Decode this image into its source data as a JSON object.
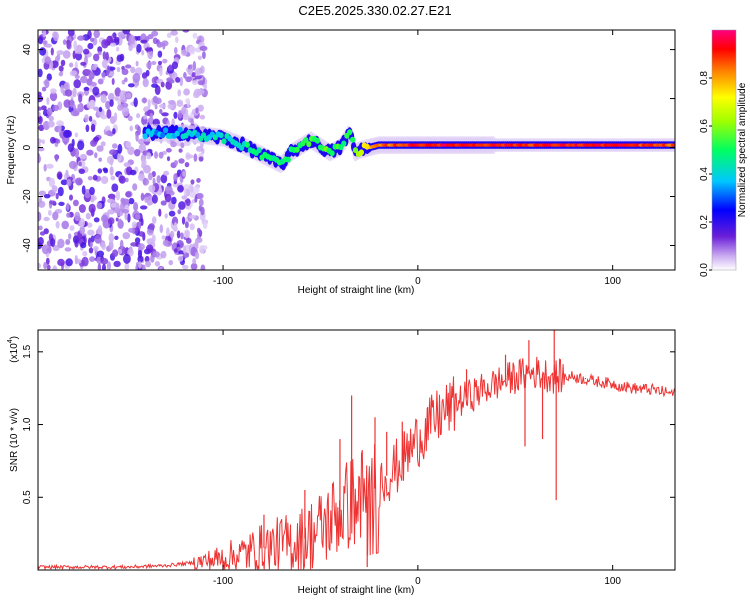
{
  "figure": {
    "title": "C2E5.2025.330.02.27.E21"
  },
  "chart_data": [
    {
      "type": "heatmap",
      "name": "spectrogram",
      "xlabel": "Height of straight line (km)",
      "ylabel": "Frequency (Hz)",
      "xlim": [
        -195,
        132
      ],
      "ylim": [
        -50,
        48
      ],
      "x_ticks": [
        -100,
        0,
        100
      ],
      "x_tick_labels": [
        "-100",
        "0",
        "100"
      ],
      "y_ticks": [
        -40,
        -20,
        0,
        20,
        40
      ],
      "y_tick_labels": [
        "-40",
        "-20",
        "0",
        "20",
        "40"
      ],
      "noise_region_x": [
        -195,
        -115
      ],
      "ridge": {
        "x": [
          -140,
          -120,
          -100,
          -90,
          -80,
          -70,
          -65,
          -55,
          -45,
          -40,
          -35,
          -32,
          -30,
          -25,
          -20,
          -10,
          0,
          20,
          60,
          100,
          132
        ],
        "freq": [
          6,
          6,
          4,
          1,
          -3,
          -7,
          -2,
          3,
          -2,
          0,
          6,
          -2,
          -1,
          0,
          1,
          1,
          1,
          1,
          1,
          1,
          1
        ],
        "amplitude": [
          0.35,
          0.38,
          0.42,
          0.45,
          0.5,
          0.48,
          0.5,
          0.55,
          0.55,
          0.52,
          0.5,
          0.6,
          0.65,
          0.75,
          0.82,
          0.88,
          0.92,
          0.92,
          0.9,
          0.92,
          0.85
        ]
      },
      "colorbar": {
        "label": "Normalized spectral amplitude",
        "range": [
          0,
          1
        ],
        "ticks": [
          0.0,
          0.2,
          0.4,
          0.6,
          0.8
        ],
        "tick_labels": [
          "0.0",
          "0.2",
          "0.4",
          "0.6",
          "0.8"
        ]
      }
    },
    {
      "type": "line",
      "name": "snr",
      "xlabel": "Height of straight line (km)",
      "ylabel": "SNR (10 * v/v)",
      "scale_label": "(x10",
      "scale_exponent": "4",
      "xlim": [
        -195,
        132
      ],
      "ylim": [
        0,
        1.65
      ],
      "x_ticks": [
        -100,
        0,
        100
      ],
      "x_tick_labels": [
        "-100",
        "0",
        "100"
      ],
      "y_ticks": [
        0.5,
        1.0,
        1.5
      ],
      "y_tick_labels": [
        "0.5",
        "1.0",
        "1.5"
      ],
      "series_color": "#ee3333",
      "envelope": {
        "x": [
          -195,
          -150,
          -130,
          -115,
          -100,
          -90,
          -80,
          -70,
          -60,
          -50,
          -40,
          -30,
          -25,
          -20,
          -10,
          0,
          10,
          20,
          30,
          40,
          50,
          60,
          70,
          80,
          90,
          100,
          110,
          120,
          132
        ],
        "y": [
          0.02,
          0.02,
          0.03,
          0.05,
          0.08,
          0.11,
          0.15,
          0.17,
          0.2,
          0.28,
          0.4,
          0.52,
          0.5,
          0.6,
          0.72,
          0.9,
          1.05,
          1.15,
          1.22,
          1.28,
          1.33,
          1.36,
          1.33,
          1.33,
          1.3,
          1.28,
          1.25,
          1.24,
          1.21
        ]
      },
      "spikes": [
        {
          "x": -79,
          "y": 0.38
        },
        {
          "x": -58,
          "y": 0.55
        },
        {
          "x": -40,
          "y": 0.9
        },
        {
          "x": -34,
          "y": 1.2
        },
        {
          "x": -22,
          "y": 1.05
        },
        {
          "x": -16,
          "y": 0.95
        },
        {
          "x": -8,
          "y": 1.02
        },
        {
          "x": 5,
          "y": 1.12
        },
        {
          "x": 25,
          "y": 1.38
        },
        {
          "x": 45,
          "y": 1.48
        },
        {
          "x": 57,
          "y": 1.58
        },
        {
          "x": 70,
          "y": 1.65
        },
        {
          "x": 71,
          "y": 0.48
        },
        {
          "x": 86,
          "y": 1.32
        }
      ],
      "dips": [
        {
          "x": -26,
          "y": 0.02
        },
        {
          "x": 55,
          "y": 0.85
        },
        {
          "x": 64,
          "y": 0.9
        }
      ]
    }
  ]
}
